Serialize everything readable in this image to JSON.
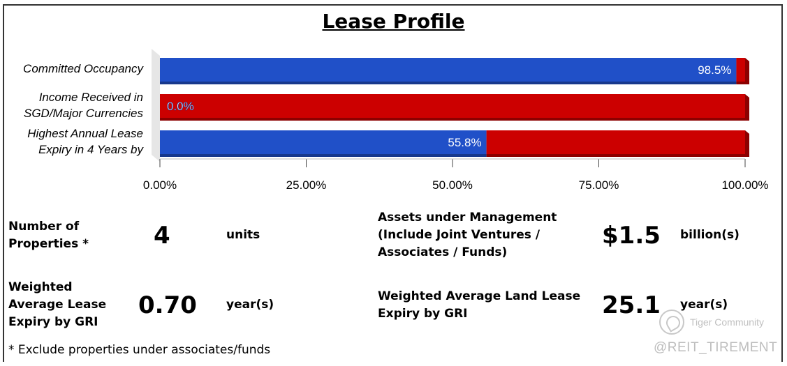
{
  "title": "Lease Profile",
  "chart_data": {
    "type": "bar",
    "orientation": "horizontal",
    "stacked": true,
    "categories": [
      [
        "Committed Occupancy"
      ],
      [
        "Income Received in",
        "SGD/Major Currencies"
      ],
      [
        "Highest Annual Lease",
        "Expiry in 4 Years by"
      ]
    ],
    "series": [
      {
        "values": [
          98.5,
          0.0,
          55.8
        ],
        "color": "#2050c8"
      },
      {
        "values": [
          1.5,
          100.0,
          44.2
        ],
        "color": "#cc0000"
      }
    ],
    "data_labels": [
      "98.5%",
      "0.0%",
      "55.8%"
    ],
    "xlim": [
      0,
      100
    ],
    "xticks": [
      0,
      25,
      50,
      75,
      100
    ],
    "xtick_labels": [
      "0.00%",
      "25.00%",
      "50.00%",
      "75.00%",
      "100.00%"
    ],
    "xlabel": "",
    "ylabel": "",
    "grid": false,
    "legend": "none"
  },
  "stats": {
    "properties": {
      "label": [
        "Number of",
        "Properties *"
      ],
      "value": "4",
      "unit": "units"
    },
    "aum": {
      "label": [
        "Assets under Management",
        "(Include Joint Ventures /",
        "Associates / Funds)"
      ],
      "value": "$1.5",
      "unit": "billion(s)"
    },
    "wale": {
      "label": [
        "Weighted",
        "Average Lease",
        "Expiry by GRI"
      ],
      "value": "0.70",
      "unit": "year(s)"
    },
    "land_wale": {
      "label": [
        "Weighted Average Land Lease",
        "Expiry by GRI"
      ],
      "value": "25.1",
      "unit": "year(s)"
    }
  },
  "footnote": "* Exclude properties under associates/funds",
  "watermark": {
    "brand": "Tiger Community",
    "handle": "@REIT_TIREMENT",
    "logo": "tiger-community-logo-icon"
  }
}
